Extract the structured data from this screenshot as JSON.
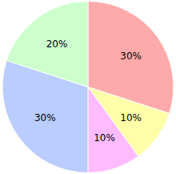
{
  "chart_data": {
    "type": "pie",
    "values": [
      30,
      10,
      10,
      30,
      20
    ],
    "value_labels": [
      "30%",
      "10%",
      "10%",
      "30%",
      "20%"
    ],
    "colors": [
      "#ffaaaa",
      "#ffffaa",
      "#ffbbff",
      "#bbccff",
      "#ccffcc"
    ],
    "data_labels": true
  }
}
